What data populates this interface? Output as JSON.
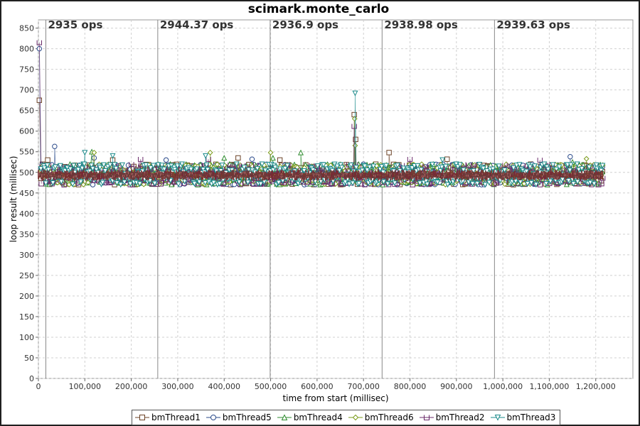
{
  "chart_data": {
    "type": "scatter",
    "title": "scimark.monte_carlo",
    "xlabel": "time from start (millisec)",
    "ylabel": "loop result (millisec)",
    "xlim": [
      0,
      1280000
    ],
    "ylim": [
      0,
      870
    ],
    "x_ticks": [
      0,
      100000,
      200000,
      300000,
      400000,
      500000,
      600000,
      700000,
      800000,
      900000,
      1000000,
      1100000,
      1200000
    ],
    "x_tick_labels": [
      "0",
      "100,000",
      "200,000",
      "300,000",
      "400,000",
      "500,000",
      "600,000",
      "700,000",
      "800,000",
      "900,000",
      "1,000,000",
      "1,100,000",
      "1,200,000"
    ],
    "y_ticks": [
      0,
      50,
      100,
      150,
      200,
      250,
      300,
      350,
      400,
      450,
      500,
      550,
      600,
      650,
      700,
      750,
      800,
      850
    ],
    "grid": true,
    "legend_position": "bottom",
    "iteration_markers": [
      {
        "x": 16000,
        "label": "2935 ops"
      },
      {
        "x": 257000,
        "label": "2944.37 ops"
      },
      {
        "x": 499000,
        "label": "2936.9 ops"
      },
      {
        "x": 740000,
        "label": "2938.98 ops"
      },
      {
        "x": 982000,
        "label": "2939.63 ops"
      }
    ],
    "series": [
      {
        "name": "bmThread1",
        "marker": "square",
        "color": "#6b4226",
        "points": [
          [
            2000,
            675
          ],
          [
            20000,
            530
          ],
          [
            60000,
            472
          ],
          [
            160000,
            530
          ],
          [
            290000,
            518
          ],
          [
            430000,
            535
          ],
          [
            520000,
            530
          ],
          [
            680000,
            640
          ],
          [
            683000,
            580
          ],
          [
            755000,
            548
          ],
          [
            880000,
            532
          ],
          [
            1060000,
            520
          ],
          [
            1210000,
            515
          ]
        ],
        "band": [
          470,
          520
        ]
      },
      {
        "name": "bmThread5",
        "marker": "circle",
        "color": "#2a4a8a",
        "points": [
          [
            2000,
            800
          ],
          [
            35000,
            563
          ],
          [
            120000,
            535
          ],
          [
            275000,
            530
          ],
          [
            460000,
            532
          ],
          [
            700000,
            520
          ],
          [
            1145000,
            538
          ],
          [
            1200000,
            500
          ]
        ],
        "band": [
          470,
          520
        ]
      },
      {
        "name": "bmThread4",
        "marker": "triangle-up",
        "color": "#2e8b2e",
        "points": [
          [
            115000,
            550
          ],
          [
            400000,
            535
          ],
          [
            505000,
            535
          ],
          [
            565000,
            548
          ],
          [
            850000,
            520
          ],
          [
            1150000,
            525
          ]
        ],
        "band": [
          470,
          520
        ]
      },
      {
        "name": "bmThread6",
        "marker": "diamond",
        "color": "#7a9a1a",
        "points": [
          [
            120000,
            548
          ],
          [
            370000,
            548
          ],
          [
            500000,
            548
          ],
          [
            681000,
            630
          ],
          [
            682000,
            565
          ],
          [
            1180000,
            533
          ]
        ],
        "band": [
          470,
          520
        ]
      },
      {
        "name": "bmThread2",
        "marker": "square-open-top",
        "color": "#6a2a6a",
        "points": [
          [
            2000,
            815
          ],
          [
            220000,
            532
          ],
          [
            366000,
            532
          ],
          [
            680000,
            612
          ],
          [
            800000,
            532
          ],
          [
            1080000,
            530
          ]
        ],
        "band": [
          470,
          520
        ]
      },
      {
        "name": "bmThread3",
        "marker": "triangle-down",
        "color": "#1a8a8a",
        "points": [
          [
            100000,
            548
          ],
          [
            160000,
            540
          ],
          [
            360000,
            540
          ],
          [
            682000,
            692
          ],
          [
            870000,
            530
          ],
          [
            1160000,
            520
          ]
        ],
        "band": [
          470,
          520
        ]
      }
    ]
  }
}
